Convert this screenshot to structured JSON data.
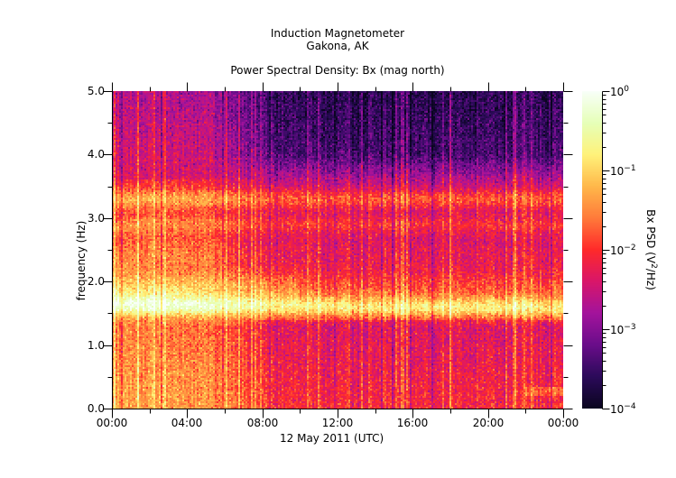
{
  "header": {
    "line1": "Induction Magnetometer",
    "line2": "Gakona, AK",
    "subtitle": "Power Spectral Density: Bx (mag north)"
  },
  "chart_data": {
    "type": "heatmap",
    "title": "Induction Magnetometer — Gakona, AK",
    "subtitle": "Power Spectral Density: Bx (mag north)",
    "xlabel": "12 May 2011 (UTC)",
    "ylabel": "frequency (Hz)",
    "x_ticks": [
      "00:00",
      "04:00",
      "08:00",
      "12:00",
      "16:00",
      "20:00",
      "00:00"
    ],
    "x_range_hours": [
      0,
      24
    ],
    "y_ticks": [
      "0.0",
      "1.0",
      "2.0",
      "3.0",
      "4.0",
      "5.0"
    ],
    "ylim": [
      0,
      5
    ],
    "colorbar": {
      "label": "Bx PSD (V²/Hz)",
      "scale": "log",
      "range": [
        0.0001,
        1
      ],
      "ticks": [
        {
          "base": "10",
          "exp": "0",
          "value": 1
        },
        {
          "base": "10",
          "exp": "−1",
          "value": 0.1
        },
        {
          "base": "10",
          "exp": "−2",
          "value": 0.01
        },
        {
          "base": "10",
          "exp": "−3",
          "value": 0.001
        },
        {
          "base": "10",
          "exp": "−4",
          "value": 0.0001
        }
      ],
      "colormap_stops": [
        "#0a0520",
        "#2c0a5a",
        "#6a0d8a",
        "#a3139c",
        "#d9166a",
        "#ff2a2a",
        "#ff7a3a",
        "#ffb84a",
        "#fff27a",
        "#e6ffb8",
        "#f8fff8"
      ]
    },
    "features": [
      {
        "name": "Pc1 band (strong)",
        "freq_hz": 1.6,
        "time_span": "00:00–24:00",
        "approx_psd": 0.3
      },
      {
        "name": "band 2",
        "freq_hz": 3.3,
        "time_span": "00:00–24:00",
        "approx_psd": 0.08
      },
      {
        "name": "band 3",
        "freq_hz": 2.9,
        "time_span": "00:00–24:00",
        "approx_psd": 0.04
      },
      {
        "name": "quiet high-frequency region",
        "freq_range_hz": [
          3.8,
          5.0
        ],
        "time_span": "06:00–24:00",
        "approx_psd": 0.0005
      },
      {
        "name": "elevated broadband low-frequency",
        "freq_range_hz": [
          0.0,
          1.4
        ],
        "time_span": "00:00–06:00",
        "approx_psd": 0.05
      }
    ]
  },
  "axes": {
    "y_label": "frequency (Hz)",
    "x_label": "12 May 2011 (UTC)",
    "y_ticks": [
      "0.0",
      "1.0",
      "2.0",
      "3.0",
      "4.0",
      "5.0"
    ],
    "x_ticks": [
      "00:00",
      "04:00",
      "08:00",
      "12:00",
      "16:00",
      "20:00",
      "00:00"
    ]
  },
  "colorbar": {
    "label_main": "Bx PSD (V",
    "label_sup": "2",
    "label_end": "/Hz)",
    "ticks": [
      {
        "base": "10",
        "exp": "0"
      },
      {
        "base": "10",
        "exp": "−1"
      },
      {
        "base": "10",
        "exp": "−2"
      },
      {
        "base": "10",
        "exp": "−3"
      },
      {
        "base": "10",
        "exp": "−4"
      }
    ]
  }
}
